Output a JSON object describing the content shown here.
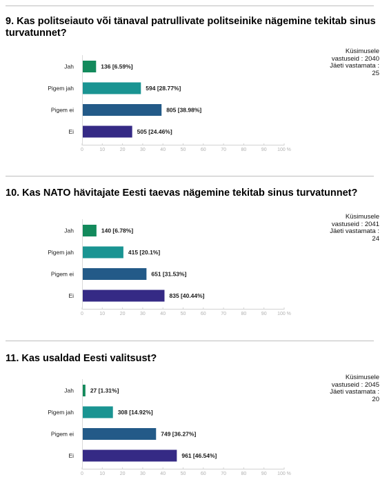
{
  "colors": {
    "Jah": "#138a5c",
    "Pigem jah": "#1a9492",
    "Pigem ei": "#235a88",
    "Ei": "#352a85"
  },
  "x_ticks": [
    "0",
    "10",
    "20",
    "30",
    "40",
    "50",
    "60",
    "70",
    "80",
    "90",
    "100 %"
  ],
  "questions": [
    {
      "title": "9. Kas politseiauto või tänaval patrullivate politseinike nägemine tekitab sinus turvatunnet?",
      "stats": [
        "Küsimusele",
        "vastuseid : 2040",
        "Jäeti vastamata :",
        "25"
      ]
    },
    {
      "title": "10. Kas NATO hävitajate Eesti taevas nägemine tekitab sinus turvatunnet?",
      "stats": [
        "Küsimusele",
        "vastuseid : 2041",
        "Jäeti vastamata :",
        "24"
      ]
    },
    {
      "title": "11. Kas usaldad Eesti valitsust?",
      "stats": [
        "Küsimusele",
        "vastuseid : 2045",
        "Jäeti vastamata :",
        "20"
      ]
    }
  ],
  "chart_data": [
    {
      "type": "bar",
      "orientation": "horizontal",
      "categories": [
        "Jah",
        "Pigem jah",
        "Pigem ei",
        "Ei"
      ],
      "values": [
        6.59,
        28.77,
        38.98,
        24.46
      ],
      "labels": [
        "136 [6.59%]",
        "594 [28.77%]",
        "805 [38.98%]",
        "505 [24.46%]"
      ],
      "xlim": [
        0,
        100
      ]
    },
    {
      "type": "bar",
      "orientation": "horizontal",
      "categories": [
        "Jah",
        "Pigem jah",
        "Pigem ei",
        "Ei"
      ],
      "values": [
        6.78,
        20.1,
        31.53,
        40.44
      ],
      "labels": [
        "140 [6.78%]",
        "415 [20.1%]",
        "651 [31.53%]",
        "835 [40.44%]"
      ],
      "xlim": [
        0,
        100
      ]
    },
    {
      "type": "bar",
      "orientation": "horizontal",
      "categories": [
        "Jah",
        "Pigem jah",
        "Pigem ei",
        "Ei"
      ],
      "values": [
        1.31,
        14.92,
        36.27,
        46.54
      ],
      "labels": [
        "27 [1.31%]",
        "308 [14.92%]",
        "749 [36.27%]",
        "961 [46.54%]"
      ],
      "xlim": [
        0,
        100
      ]
    }
  ]
}
